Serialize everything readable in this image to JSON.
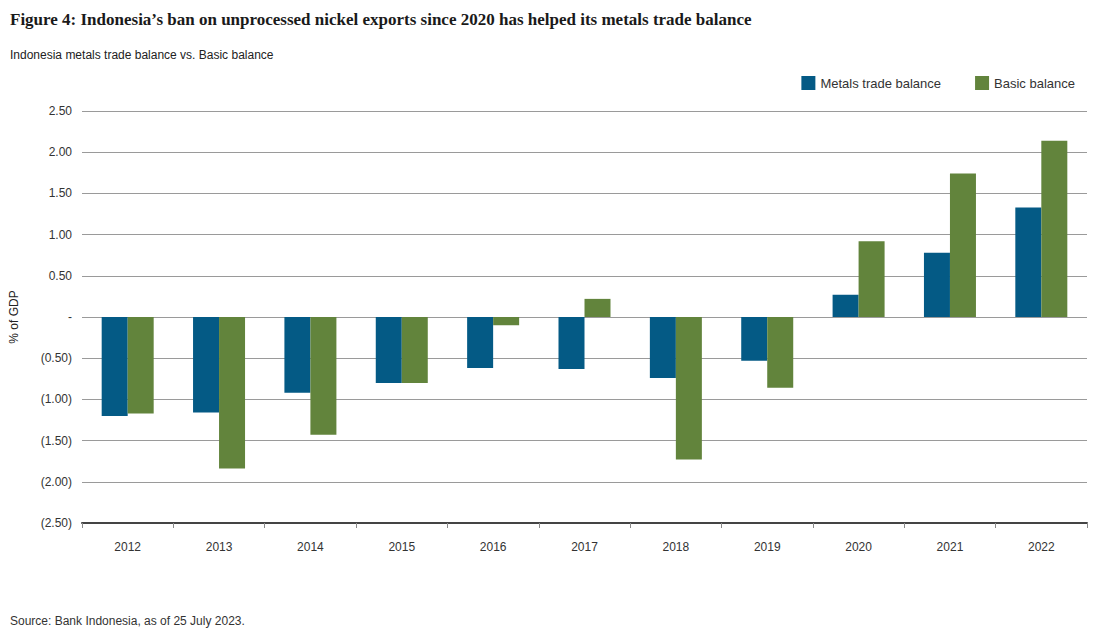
{
  "chart_data": {
    "type": "bar",
    "title": "Figure 4: Indonesia’s ban on unprocessed nickel exports since 2020 has helped its metals trade balance",
    "subtitle": "Indonesia metals trade balance vs. Basic balance",
    "ylabel": "% of GDP",
    "source": "Source: Bank Indonesia, as of 25 July 2023.",
    "categories": [
      "2012",
      "2013",
      "2014",
      "2015",
      "2016",
      "2017",
      "2018",
      "2019",
      "2020",
      "2021",
      "2022"
    ],
    "series": [
      {
        "name": "Metals trade balance",
        "color": "#045a85",
        "values": [
          -1.2,
          -1.16,
          -0.92,
          -0.8,
          -0.62,
          -0.63,
          -0.74,
          -0.53,
          0.27,
          0.78,
          1.33
        ]
      },
      {
        "name": "Basic balance",
        "color": "#62843c",
        "values": [
          -1.17,
          -1.84,
          -1.43,
          -0.8,
          -0.1,
          0.22,
          -1.73,
          -0.86,
          0.92,
          1.74,
          2.14
        ]
      }
    ],
    "ylim": [
      -2.5,
      2.5
    ],
    "yticks": [
      {
        "value": -2.5,
        "label": "(2.50)"
      },
      {
        "value": -2.0,
        "label": "(2.00)"
      },
      {
        "value": -1.5,
        "label": "(1.50)"
      },
      {
        "value": -1.0,
        "label": "(1.00)"
      },
      {
        "value": -0.5,
        "label": "(0.50)"
      },
      {
        "value": 0,
        "label": "-"
      },
      {
        "value": 0.5,
        "label": "0.50"
      },
      {
        "value": 1.0,
        "label": "1.00"
      },
      {
        "value": 1.5,
        "label": "1.50"
      },
      {
        "value": 2.0,
        "label": "2.00"
      },
      {
        "value": 2.5,
        "label": "2.50"
      }
    ],
    "grid": true,
    "legend": "top-right"
  }
}
